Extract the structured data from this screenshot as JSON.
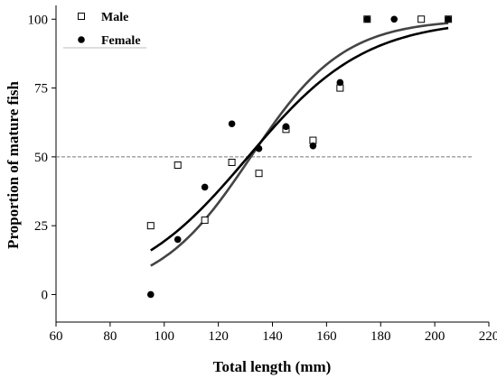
{
  "chart_data": {
    "type": "scatter",
    "xlabel": "Total length (mm)",
    "ylabel": "Proportion of mature fish",
    "xlim": [
      60,
      220
    ],
    "ylim": [
      -10,
      105
    ],
    "xticks": [
      60,
      80,
      100,
      120,
      140,
      160,
      180,
      200,
      220
    ],
    "yticks": [
      0,
      25,
      50,
      75,
      100
    ],
    "reference_line_y": 50,
    "legend_position": "top-left",
    "series": [
      {
        "name": "Male",
        "marker": "open-square",
        "color": "#000000",
        "points": [
          [
            95,
            25
          ],
          [
            105,
            47
          ],
          [
            115,
            27
          ],
          [
            125,
            48
          ],
          [
            135,
            44
          ],
          [
            145,
            60
          ],
          [
            155,
            56
          ],
          [
            165,
            75
          ],
          [
            175,
            100
          ],
          [
            195,
            100
          ],
          [
            205,
            100
          ]
        ],
        "fit": {
          "x50": 132,
          "k": 0.058,
          "xrange": [
            95,
            205
          ],
          "color": "#444444"
        }
      },
      {
        "name": "Female",
        "marker": "filled-circle",
        "color": "#000000",
        "points": [
          [
            95,
            0
          ],
          [
            105,
            20
          ],
          [
            115,
            39
          ],
          [
            125,
            62
          ],
          [
            135,
            53
          ],
          [
            145,
            61
          ],
          [
            155,
            54
          ],
          [
            165,
            77
          ],
          [
            175,
            100
          ],
          [
            185,
            100
          ],
          [
            205,
            100
          ]
        ],
        "fit": {
          "x50": 131,
          "k": 0.046,
          "xrange": [
            95,
            205
          ],
          "color": "#000000"
        }
      }
    ]
  }
}
